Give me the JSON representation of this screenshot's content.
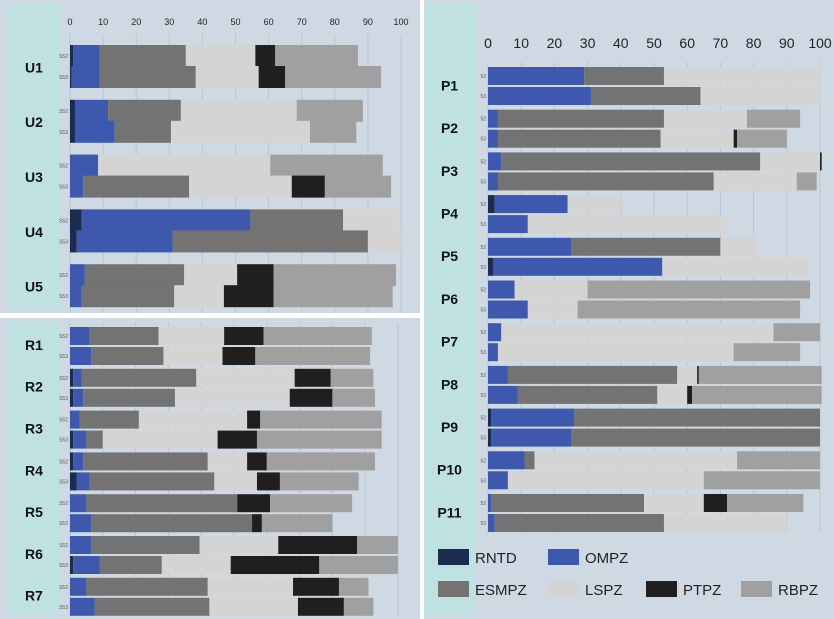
{
  "colors": {
    "RNTD": "#1c2c50",
    "OMPZ": "#3d58ad",
    "ESMPZ": "#737373",
    "LSPZ": "#d4d4d4",
    "PTPZ": "#201e1e",
    "RBPZ": "#a0a0a0",
    "teal": "#bfe1e1",
    "panel_bg": "#cfd9e3",
    "grid": "#b7c6d3"
  },
  "chart_data": [
    {
      "type": "bar",
      "orientation": "horizontal",
      "stacked": true,
      "panel": "U",
      "xlim": [
        0,
        100
      ],
      "xticks": [
        "0",
        "10",
        "20",
        "30",
        "40",
        "50",
        "60",
        "70",
        "80",
        "90",
        "100"
      ],
      "series_order": [
        "RNTD",
        "OMPZ",
        "ESMPZ",
        "LSPZ",
        "PTPZ",
        "RBPZ"
      ],
      "groups": [
        {
          "label": "U1",
          "bars": [
            {
              "sublabel": "S52",
              "values": [
                1,
                8,
                26,
                21,
                6,
                25
              ]
            },
            {
              "sublabel": "S53",
              "values": [
                0.5,
                8.5,
                29,
                19,
                8,
                29
              ]
            }
          ]
        },
        {
          "label": "U2",
          "bars": [
            {
              "sublabel": "S52",
              "values": [
                1.5,
                10,
                22,
                35,
                0,
                20
              ]
            },
            {
              "sublabel": "S53",
              "values": [
                1.5,
                12,
                17,
                42,
                0,
                14
              ]
            }
          ]
        },
        {
          "label": "U3",
          "bars": [
            {
              "sublabel": "S52",
              "values": [
                0,
                8.5,
                0,
                52,
                0,
                34
              ]
            },
            {
              "sublabel": "S53",
              "values": [
                0,
                4,
                32,
                31,
                10,
                20
              ]
            }
          ]
        },
        {
          "label": "U4",
          "bars": [
            {
              "sublabel": "S52",
              "values": [
                3.5,
                51,
                28,
                17,
                0,
                0
              ]
            },
            {
              "sublabel": "S53",
              "values": [
                2,
                29,
                59,
                10,
                0,
                0
              ]
            }
          ]
        },
        {
          "label": "U5",
          "bars": [
            {
              "sublabel": "S52",
              "values": [
                0,
                4.5,
                30,
                16,
                11,
                37
              ]
            },
            {
              "sublabel": "S53",
              "values": [
                0,
                3.5,
                28,
                15,
                15,
                36
              ]
            }
          ]
        }
      ]
    },
    {
      "type": "bar",
      "orientation": "horizontal",
      "stacked": true,
      "panel": "R",
      "xlim": [
        0,
        100
      ],
      "series_order": [
        "RNTD",
        "OMPZ",
        "ESMPZ",
        "LSPZ",
        "PTPZ",
        "RBPZ"
      ],
      "groups": [
        {
          "label": "R1",
          "bars": [
            {
              "sublabel": "S52",
              "values": [
                0,
                6,
                21,
                20,
                12,
                33
              ]
            },
            {
              "sublabel": "S53",
              "values": [
                0,
                6.5,
                22,
                18,
                10,
                35
              ]
            }
          ]
        },
        {
          "label": "R2",
          "bars": [
            {
              "sublabel": "S52",
              "values": [
                1,
                2.5,
                35,
                30,
                11,
                13
              ]
            },
            {
              "sublabel": "S53",
              "values": [
                1,
                3,
                28,
                35,
                13,
                13
              ]
            }
          ]
        },
        {
          "label": "R3",
          "bars": [
            {
              "sublabel": "S52",
              "values": [
                0,
                3,
                18,
                33,
                4,
                37
              ]
            },
            {
              "sublabel": "S53",
              "values": [
                1,
                4,
                5,
                35,
                12,
                38
              ]
            }
          ]
        },
        {
          "label": "R4",
          "bars": [
            {
              "sublabel": "S52",
              "values": [
                1,
                3,
                38,
                12,
                6,
                33
              ]
            },
            {
              "sublabel": "S53",
              "values": [
                2,
                4,
                38,
                13,
                7,
                24
              ]
            }
          ]
        },
        {
          "label": "R5",
          "bars": [
            {
              "sublabel": "S52",
              "values": [
                0,
                5,
                46,
                0,
                10,
                25
              ]
            },
            {
              "sublabel": "S53",
              "values": [
                0,
                6.5,
                49,
                0,
                3,
                21.5
              ]
            }
          ]
        },
        {
          "label": "R6",
          "bars": [
            {
              "sublabel": "S52",
              "values": [
                0,
                6.5,
                33,
                24,
                24,
                12.5
              ]
            },
            {
              "sublabel": "S53",
              "values": [
                1,
                8,
                19,
                21,
                27,
                24
              ]
            }
          ]
        },
        {
          "label": "R7",
          "bars": [
            {
              "sublabel": "S52",
              "values": [
                0,
                5,
                37,
                26,
                14,
                9
              ]
            },
            {
              "sublabel": "S53",
              "values": [
                0,
                7.5,
                35,
                27,
                14,
                9
              ]
            }
          ]
        }
      ]
    },
    {
      "type": "bar",
      "orientation": "horizontal",
      "stacked": true,
      "panel": "P",
      "xlim": [
        0,
        100
      ],
      "xticks": [
        "0",
        "10",
        "20",
        "30",
        "40",
        "50",
        "60",
        "70",
        "80",
        "90",
        "100"
      ],
      "series_order": [
        "RNTD",
        "OMPZ",
        "ESMPZ",
        "LSPZ",
        "PTPZ",
        "RBPZ"
      ],
      "groups": [
        {
          "label": "P1",
          "bars": [
            {
              "sublabel": "52",
              "values": [
                0,
                29,
                24,
                47,
                0,
                0
              ]
            },
            {
              "sublabel": "53",
              "values": [
                0,
                31,
                33,
                36,
                0,
                0
              ]
            }
          ]
        },
        {
          "label": "P2",
          "bars": [
            {
              "sublabel": "52",
              "values": [
                0,
                3,
                50,
                25,
                0,
                16
              ]
            },
            {
              "sublabel": "53",
              "values": [
                0,
                3,
                49,
                22,
                1,
                15
              ]
            }
          ]
        },
        {
          "label": "P3",
          "bars": [
            {
              "sublabel": "52",
              "values": [
                0,
                4,
                78,
                18,
                0.5,
                0
              ]
            },
            {
              "sublabel": "53",
              "values": [
                0,
                3,
                65,
                25,
                0,
                6
              ]
            }
          ]
        },
        {
          "label": "P4",
          "bars": [
            {
              "sublabel": "52",
              "values": [
                2,
                22,
                0,
                16,
                0,
                0
              ]
            },
            {
              "sublabel": "53",
              "values": [
                0,
                12,
                0,
                60,
                0,
                0
              ]
            }
          ]
        },
        {
          "label": "P5",
          "bars": [
            {
              "sublabel": "52",
              "values": [
                0,
                25,
                45,
                11,
                0,
                0
              ]
            },
            {
              "sublabel": "53",
              "values": [
                1.5,
                51,
                0,
                44,
                0,
                0
              ]
            }
          ]
        },
        {
          "label": "P6",
          "bars": [
            {
              "sublabel": "52",
              "values": [
                0,
                8,
                0,
                22,
                0,
                67
              ]
            },
            {
              "sublabel": "53",
              "values": [
                0,
                12,
                0,
                15,
                0,
                67
              ]
            }
          ]
        },
        {
          "label": "P7",
          "bars": [
            {
              "sublabel": "52",
              "values": [
                0,
                4,
                0,
                82,
                0,
                14
              ]
            },
            {
              "sublabel": "53",
              "values": [
                0,
                3,
                0,
                71,
                0,
                20
              ]
            }
          ]
        },
        {
          "label": "P8",
          "bars": [
            {
              "sublabel": "52",
              "values": [
                0,
                6,
                51,
                6,
                0.5,
                37
              ]
            },
            {
              "sublabel": "53",
              "values": [
                0,
                9,
                42,
                9,
                1.5,
                39
              ]
            }
          ]
        },
        {
          "label": "P9",
          "bars": [
            {
              "sublabel": "52",
              "values": [
                1,
                25,
                74,
                0,
                0,
                0
              ]
            },
            {
              "sublabel": "53",
              "values": [
                1,
                24,
                75,
                0,
                0,
                0
              ]
            }
          ]
        },
        {
          "label": "P10",
          "bars": [
            {
              "sublabel": "52",
              "values": [
                0,
                11,
                3,
                61,
                0,
                25
              ]
            },
            {
              "sublabel": "53",
              "values": [
                0,
                6,
                0,
                59,
                0,
                35
              ]
            }
          ]
        },
        {
          "label": "P11",
          "bars": [
            {
              "sublabel": "52",
              "values": [
                0,
                1,
                46,
                18,
                7,
                23
              ]
            },
            {
              "sublabel": "53",
              "values": [
                0,
                2,
                51,
                37,
                0,
                0
              ]
            }
          ]
        }
      ]
    }
  ],
  "legend": [
    "RNTD",
    "OMPZ",
    "ESMPZ",
    "LSPZ",
    "PTPZ",
    "RBPZ"
  ]
}
